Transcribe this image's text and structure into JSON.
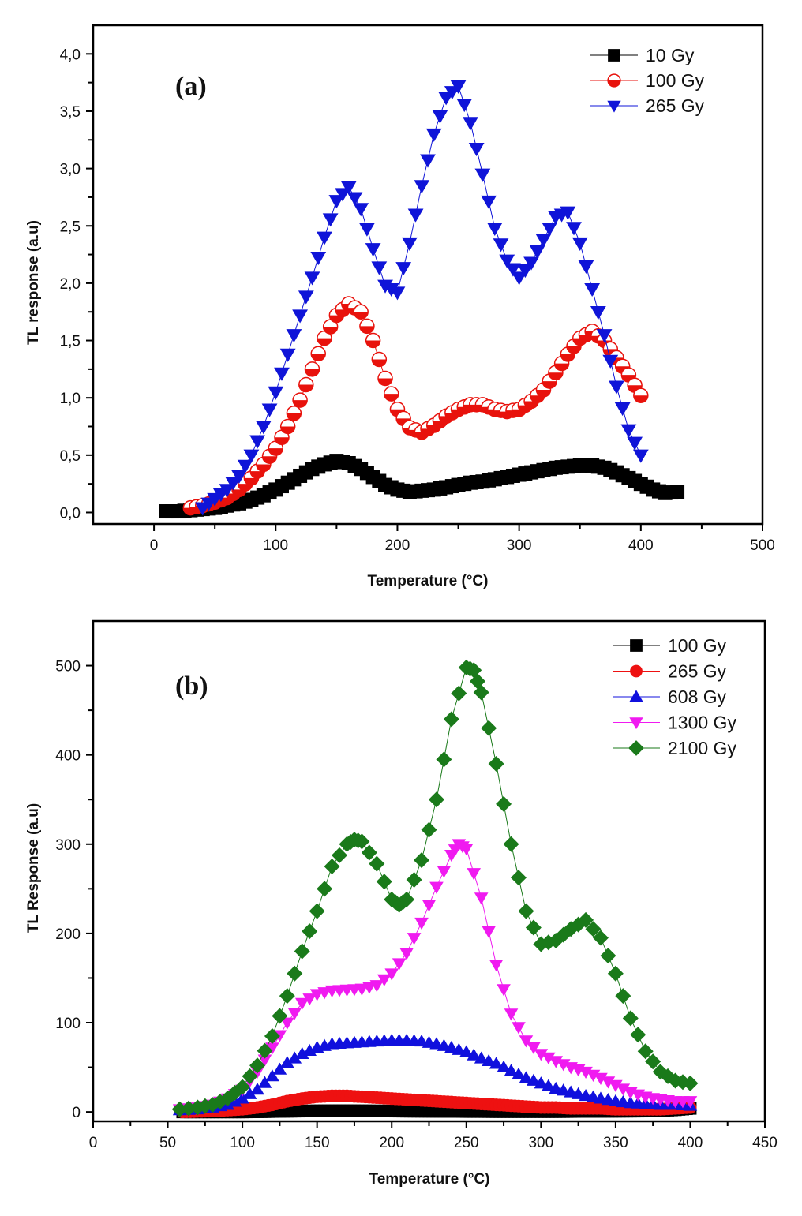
{
  "chart_data": [
    {
      "type": "line",
      "panel_label": "(a)",
      "title": "",
      "xlabel": "Temperature (°C)",
      "ylabel": "TL response (a.u)",
      "xlim": [
        -50,
        500
      ],
      "ylim": [
        -0.1,
        4.25
      ],
      "x_ticks": [
        0,
        100,
        200,
        300,
        400,
        500
      ],
      "x_tick_labels": [
        "0",
        "100",
        "200",
        "300",
        "400",
        "500"
      ],
      "y_ticks": [
        0,
        0.5,
        1.0,
        1.5,
        2.0,
        2.5,
        3.0,
        3.5,
        4.0
      ],
      "y_tick_labels": [
        "0,0",
        "0,5",
        "1,0",
        "1,5",
        "2,0",
        "2,5",
        "3,0",
        "3,5",
        "4,0"
      ],
      "grid": false,
      "legend_position": "top-right",
      "series": [
        {
          "name": "10 Gy",
          "color": "#000000",
          "marker": "square",
          "x": [
            10,
            20,
            30,
            40,
            50,
            60,
            70,
            80,
            90,
            100,
            110,
            120,
            130,
            140,
            150,
            160,
            170,
            180,
            190,
            200,
            210,
            220,
            230,
            240,
            250,
            260,
            270,
            280,
            290,
            300,
            310,
            320,
            330,
            340,
            350,
            360,
            370,
            380,
            390,
            400,
            410,
            420,
            430
          ],
          "y": [
            0.01,
            0.01,
            0.02,
            0.03,
            0.04,
            0.06,
            0.08,
            0.11,
            0.15,
            0.2,
            0.26,
            0.32,
            0.38,
            0.42,
            0.45,
            0.43,
            0.38,
            0.31,
            0.24,
            0.2,
            0.18,
            0.19,
            0.2,
            0.22,
            0.24,
            0.26,
            0.27,
            0.29,
            0.31,
            0.33,
            0.35,
            0.37,
            0.39,
            0.4,
            0.41,
            0.41,
            0.39,
            0.35,
            0.3,
            0.25,
            0.2,
            0.17,
            0.18
          ]
        },
        {
          "name": "100 Gy",
          "color": "#e8120c",
          "marker": "half-circle",
          "x": [
            30,
            40,
            50,
            60,
            70,
            80,
            90,
            100,
            110,
            120,
            130,
            140,
            150,
            160,
            170,
            180,
            190,
            200,
            210,
            220,
            230,
            240,
            250,
            260,
            270,
            280,
            290,
            300,
            310,
            320,
            330,
            340,
            350,
            360,
            370,
            380,
            390,
            400
          ],
          "y": [
            0.04,
            0.06,
            0.09,
            0.13,
            0.2,
            0.3,
            0.42,
            0.56,
            0.75,
            0.98,
            1.25,
            1.52,
            1.72,
            1.82,
            1.75,
            1.5,
            1.17,
            0.9,
            0.74,
            0.7,
            0.76,
            0.84,
            0.9,
            0.94,
            0.94,
            0.9,
            0.88,
            0.9,
            0.97,
            1.07,
            1.22,
            1.38,
            1.52,
            1.58,
            1.5,
            1.35,
            1.2,
            1.02
          ]
        },
        {
          "name": "265 Gy",
          "color": "#0f14d8",
          "marker": "triangle-down",
          "x": [
            40,
            50,
            60,
            70,
            80,
            90,
            100,
            110,
            120,
            130,
            140,
            150,
            160,
            170,
            180,
            190,
            200,
            210,
            220,
            230,
            240,
            250,
            260,
            270,
            280,
            290,
            300,
            310,
            320,
            330,
            340,
            350,
            360,
            370,
            380,
            390,
            400
          ],
          "y": [
            0.04,
            0.12,
            0.2,
            0.32,
            0.5,
            0.75,
            1.05,
            1.38,
            1.72,
            2.05,
            2.4,
            2.72,
            2.84,
            2.65,
            2.3,
            1.98,
            1.92,
            2.35,
            2.85,
            3.3,
            3.62,
            3.72,
            3.4,
            2.95,
            2.48,
            2.2,
            2.05,
            2.18,
            2.38,
            2.58,
            2.62,
            2.35,
            1.95,
            1.55,
            1.1,
            0.72,
            0.5
          ]
        }
      ]
    },
    {
      "type": "line",
      "panel_label": "(b)",
      "title": "",
      "xlabel": "Temperature (°C)",
      "ylabel": "TL Response (a.u)",
      "xlim": [
        0,
        450
      ],
      "ylim": [
        -10.5,
        550
      ],
      "x_ticks": [
        0,
        50,
        100,
        150,
        200,
        250,
        300,
        350,
        400,
        450
      ],
      "x_tick_labels": [
        "0",
        "50",
        "100",
        "150",
        "200",
        "250",
        "300",
        "350",
        "400",
        "450"
      ],
      "y_ticks": [
        0,
        100,
        200,
        300,
        400,
        500
      ],
      "y_tick_labels": [
        "0",
        "100",
        "200",
        "300",
        "400",
        "500"
      ],
      "grid": false,
      "legend_position": "top-right",
      "series": [
        {
          "name": "100 Gy",
          "color": "#000000",
          "marker": "square",
          "x": [
            60,
            70,
            80,
            90,
            100,
            110,
            120,
            130,
            140,
            150,
            160,
            170,
            180,
            190,
            200,
            210,
            220,
            230,
            240,
            250,
            260,
            270,
            280,
            290,
            300,
            310,
            320,
            330,
            340,
            350,
            360,
            370,
            380,
            390,
            400
          ],
          "y": [
            0,
            0,
            0,
            0,
            0,
            0.2,
            0.5,
            0.8,
            1,
            1.2,
            1.3,
            1.3,
            1.2,
            1.1,
            1,
            0.9,
            0.8,
            0.7,
            0.6,
            0.5,
            0.5,
            0.4,
            0.4,
            0.4,
            0.4,
            0.4,
            0.5,
            0.6,
            0.7,
            0.8,
            0.9,
            1,
            1.5,
            2.5,
            4
          ]
        },
        {
          "name": "265 Gy",
          "color": "#ee1111",
          "marker": "circle",
          "x": [
            60,
            70,
            80,
            90,
            100,
            110,
            120,
            130,
            140,
            150,
            160,
            170,
            180,
            190,
            200,
            210,
            220,
            230,
            240,
            250,
            260,
            270,
            280,
            290,
            300,
            310,
            320,
            330,
            340,
            350,
            360,
            370,
            380,
            390,
            400
          ],
          "y": [
            0,
            0.5,
            1,
            2,
            3,
            5,
            8,
            12,
            15,
            17,
            18,
            18,
            17,
            16,
            15,
            14,
            13,
            12,
            11,
            10,
            9,
            8,
            7,
            6,
            5,
            5,
            4,
            4,
            4,
            3,
            3,
            3,
            3,
            4,
            5
          ]
        },
        {
          "name": "608 Gy",
          "color": "#1010dd",
          "marker": "triangle-up",
          "x": [
            58,
            70,
            80,
            90,
            100,
            110,
            120,
            130,
            140,
            150,
            160,
            170,
            180,
            190,
            200,
            210,
            220,
            230,
            240,
            250,
            260,
            270,
            280,
            290,
            300,
            310,
            320,
            330,
            340,
            350,
            360,
            370,
            380,
            390,
            400
          ],
          "y": [
            2,
            3,
            5,
            8,
            15,
            25,
            40,
            55,
            65,
            72,
            76,
            77,
            78,
            79,
            80,
            80,
            79,
            76,
            72,
            67,
            60,
            54,
            46,
            38,
            32,
            26,
            22,
            18,
            15,
            12,
            10,
            9,
            8,
            8,
            7
          ]
        },
        {
          "name": "1300 Gy",
          "color": "#f01af0",
          "marker": "triangle-down",
          "x": [
            58,
            70,
            80,
            90,
            100,
            110,
            120,
            130,
            140,
            150,
            160,
            170,
            180,
            190,
            200,
            210,
            220,
            230,
            240,
            245,
            250,
            260,
            270,
            280,
            290,
            300,
            310,
            320,
            330,
            340,
            350,
            360,
            370,
            380,
            390,
            400
          ],
          "y": [
            3,
            5,
            8,
            15,
            25,
            45,
            72,
            100,
            122,
            132,
            136,
            137,
            138,
            142,
            155,
            178,
            212,
            252,
            288,
            300,
            295,
            240,
            165,
            110,
            80,
            65,
            57,
            50,
            45,
            38,
            30,
            22,
            17,
            14,
            12,
            12
          ]
        },
        {
          "name": "2100 Gy",
          "color": "#1a7a1a",
          "marker": "diamond",
          "x": [
            58,
            70,
            80,
            90,
            100,
            110,
            120,
            130,
            140,
            150,
            160,
            170,
            175,
            180,
            190,
            200,
            205,
            210,
            220,
            230,
            240,
            250,
            255,
            260,
            270,
            280,
            290,
            300,
            310,
            320,
            330,
            340,
            350,
            360,
            370,
            380,
            390,
            400
          ],
          "y": [
            3,
            5,
            8,
            15,
            28,
            52,
            85,
            130,
            180,
            225,
            275,
            300,
            305,
            303,
            278,
            238,
            232,
            238,
            282,
            350,
            440,
            498,
            495,
            470,
            390,
            300,
            225,
            188,
            192,
            205,
            215,
            195,
            155,
            105,
            68,
            45,
            35,
            32
          ]
        }
      ]
    }
  ]
}
